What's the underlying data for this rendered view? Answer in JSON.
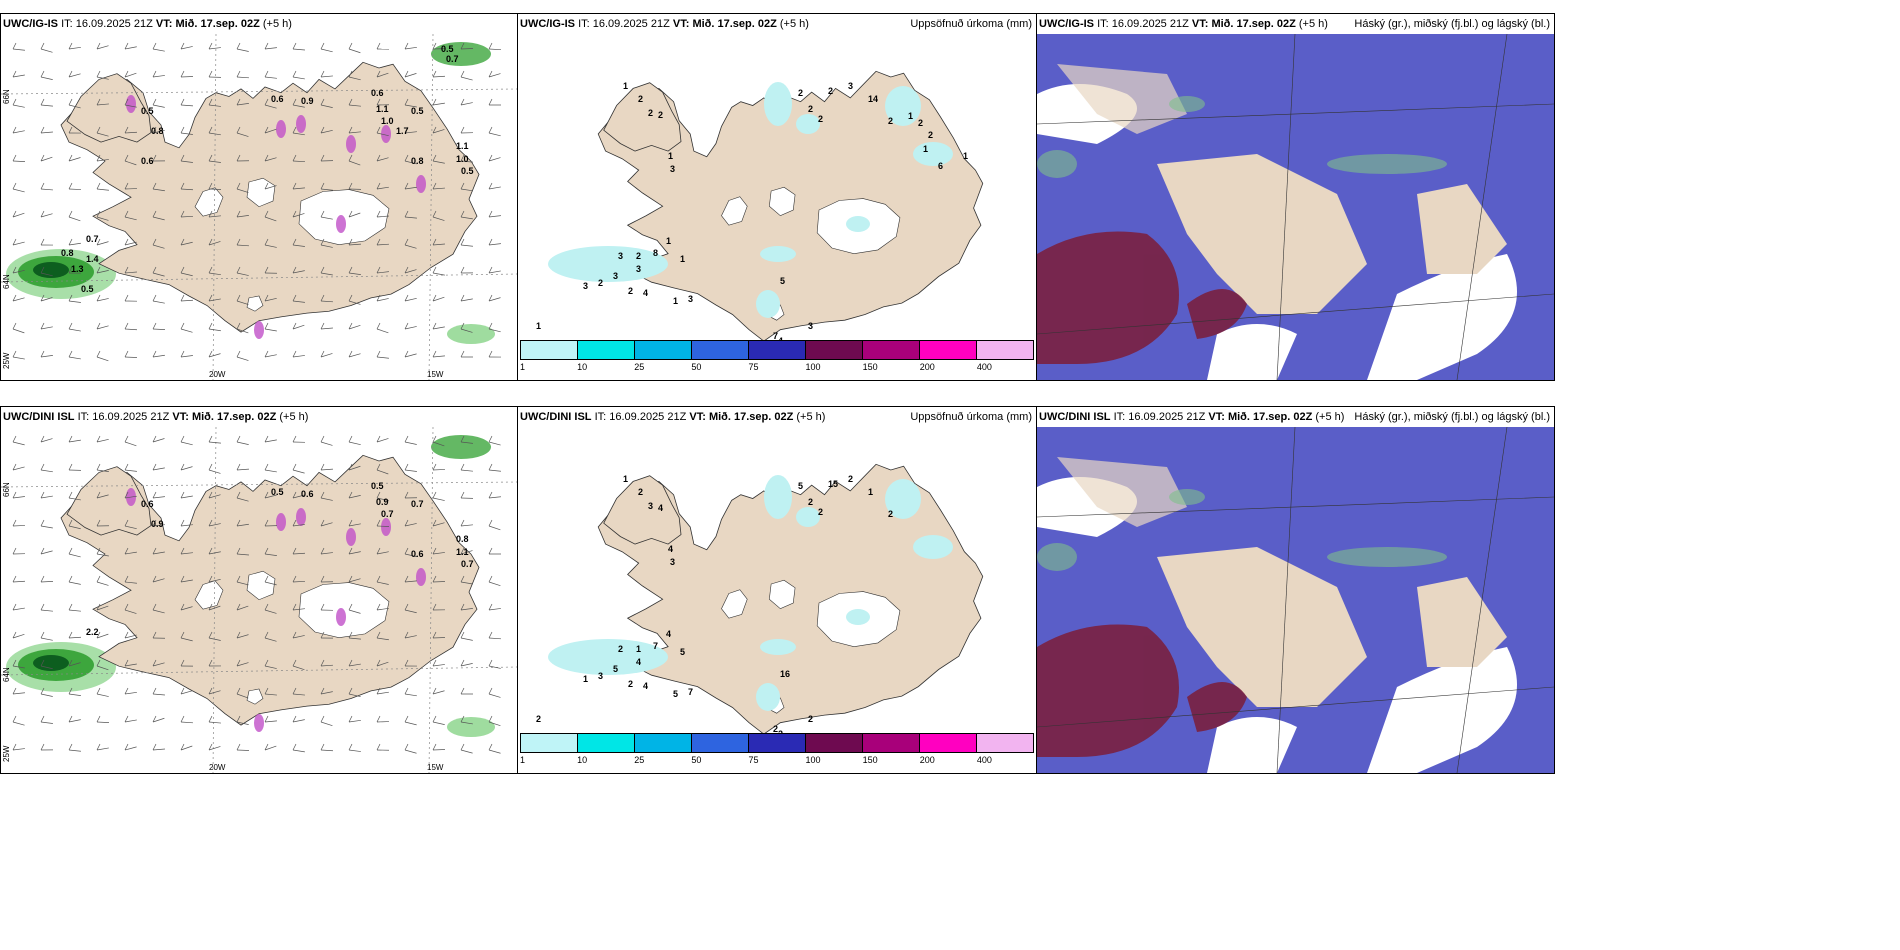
{
  "colors": {
    "land": "#e8d7c3",
    "sea": "#ffffff",
    "precip_light": "#bff1f2",
    "green_light": "#9fdc9f",
    "green_mid": "#3da63d",
    "green_dark": "#0d5e1f",
    "magenta": "#c050c8",
    "cloud_high": "#5a5ec8",
    "cloud_mid": "#7a2040",
    "cloud_low_green": "#7ec08a"
  },
  "colorbar": {
    "ticks": [
      "1",
      "10",
      "25",
      "50",
      "75",
      "100",
      "150",
      "200",
      "400"
    ],
    "colors": [
      "#bff4f7",
      "#00e6e6",
      "#00b4e6",
      "#2e64e0",
      "#2a2ab4",
      "#6e0a50",
      "#a8007a",
      "#ff00c0",
      "#f2b4f0"
    ]
  },
  "rows": [
    {
      "model": "UWC/IG-IS",
      "it_label": "IT:",
      "it_value": "16.09.2025 21Z",
      "vt_label": "VT:",
      "vt_value": "Mið. 17.sep. 02Z",
      "lead": "(+5 h)",
      "panel2_label": "Uppsöfnuð úrkoma (mm)",
      "panel3_label": "Háský (gr.), miðský (fj.bl.) og lágský (bl.)",
      "axis": {
        "lat66": "66N",
        "lat64": "64N",
        "lon25": "25W",
        "lon20": "20W",
        "lon15": "15W"
      },
      "wind_values": [
        "0.5",
        "0.8",
        "0.6",
        "0.9",
        "0.6",
        "1.1",
        "1.0",
        "0.5",
        "0.8",
        "1.1",
        "1.0",
        "0.5",
        "0.7",
        "1.4",
        "0.8",
        "1.3",
        "0.5",
        "0.6",
        "0.5",
        "0.7",
        "1.7"
      ],
      "precip_values": [
        "1",
        "2",
        "2",
        "2",
        "1",
        "3",
        "3",
        "2",
        "8",
        "1",
        "1",
        "3",
        "3",
        "2",
        "3",
        "1",
        "2",
        "4",
        "1",
        "3",
        "5",
        "7",
        "4",
        "3",
        "2",
        "2",
        "2",
        "2",
        "3",
        "14",
        "2",
        "1",
        "2",
        "2",
        "1",
        "6",
        "1"
      ]
    },
    {
      "model": "UWC/DINI ISL",
      "it_label": "IT:",
      "it_value": "16.09.2025 21Z",
      "vt_label": "VT:",
      "vt_value": "Mið. 17.sep. 02Z",
      "lead": "(+5 h)",
      "panel2_label": "Uppsöfnuð úrkoma (mm)",
      "panel3_label": "Háský (gr.), miðský (fj.bl.) og lágský (bl.)",
      "axis": {
        "lat66": "66N",
        "lat64": "64N",
        "lon25": "25W",
        "lon20": "20W",
        "lon15": "15W"
      },
      "wind_values": [
        "0.6",
        "0.9",
        "0.5",
        "0.6",
        "0.5",
        "0.9",
        "0.7",
        "0.7",
        "0.6",
        "0.8",
        "1.1",
        "0.7",
        "2.2"
      ],
      "precip_values": [
        "1",
        "2",
        "3",
        "4",
        "4",
        "3",
        "2",
        "1",
        "7",
        "4",
        "5",
        "4",
        "5",
        "3",
        "1",
        "2",
        "2",
        "4",
        "5",
        "7",
        "16",
        "2",
        "2",
        "2",
        "5",
        "2",
        "2",
        "15",
        "2",
        "1",
        "2"
      ]
    }
  ]
}
